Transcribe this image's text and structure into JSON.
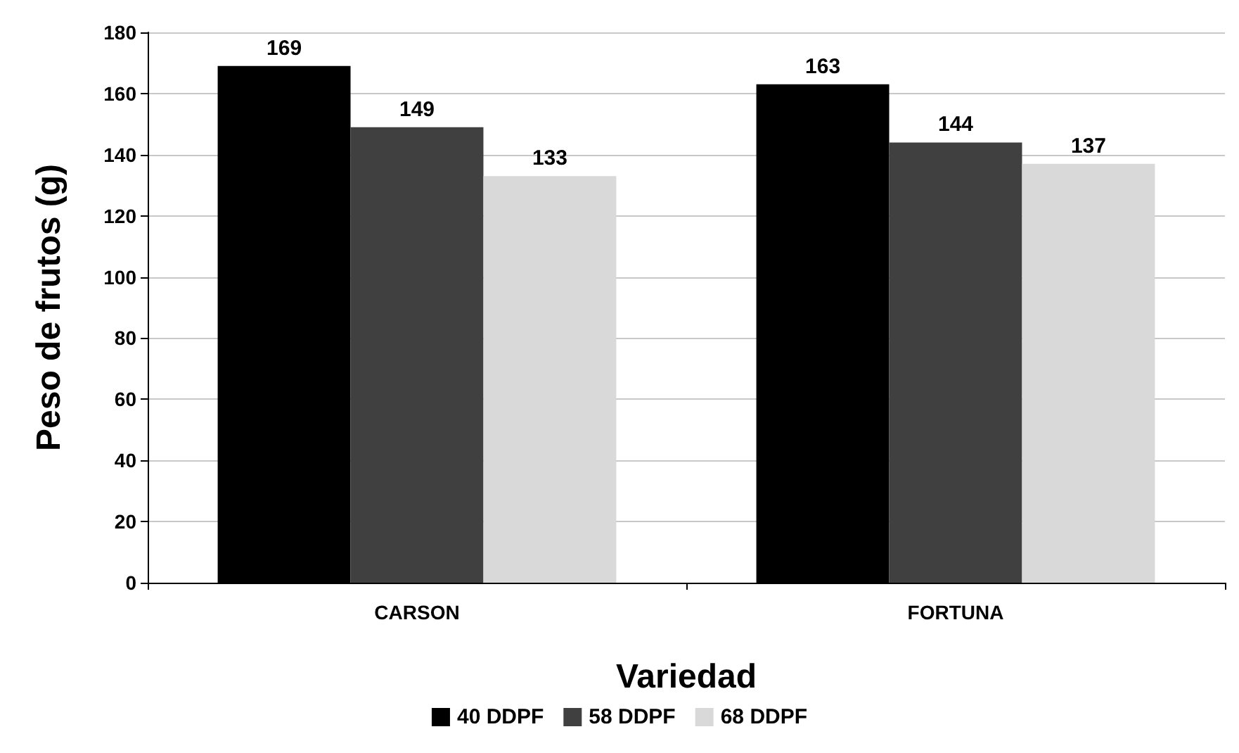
{
  "chart_data": {
    "type": "bar",
    "xlabel": "Variedad",
    "ylabel": "Peso de frutos (g)",
    "categories": [
      "CARSON",
      "FORTUNA"
    ],
    "series": [
      {
        "name": "40 DDPF",
        "color": "#000000",
        "values": [
          169,
          163
        ]
      },
      {
        "name": "58 DDPF",
        "color": "#404040",
        "values": [
          149,
          144
        ]
      },
      {
        "name": "68 DDPF",
        "color": "#d9d9d9",
        "values": [
          133,
          137
        ]
      }
    ],
    "ylim": [
      0,
      180
    ],
    "yticks": [
      0,
      20,
      40,
      60,
      80,
      100,
      120,
      140,
      160,
      180
    ],
    "grid": "y",
    "legend": "bottom",
    "data_labels": true
  }
}
